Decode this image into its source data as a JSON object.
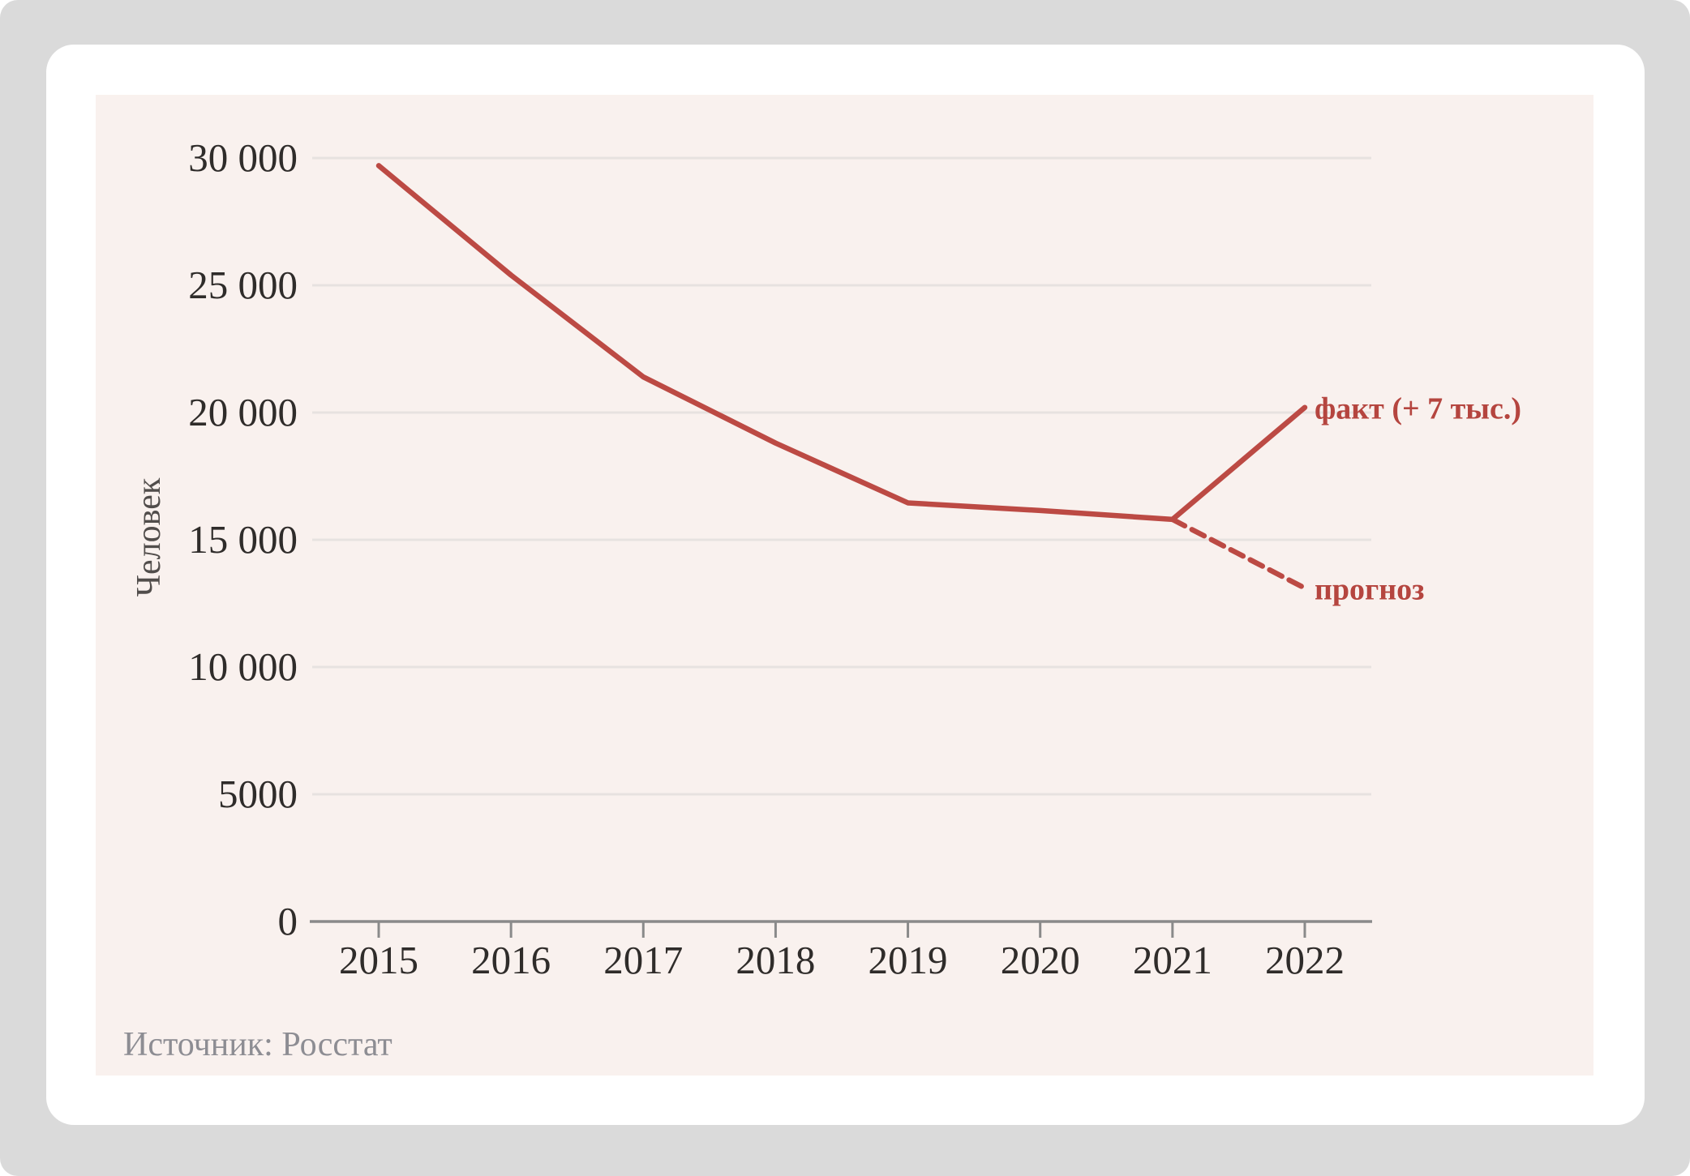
{
  "colors": {
    "frame_bg": "#dadada",
    "card_bg": "#ffffff",
    "panel_bg": "#f9f1ee",
    "grid_line": "#e7e2e0",
    "axis_line": "#8a8a8a",
    "tick_text": "#2f2c2a",
    "axis_title_text": "#514d4b",
    "source_text": "#8d8d93",
    "series_red": "#bc4a44",
    "series_label_red": "#b5453f"
  },
  "chart_data": {
    "type": "line",
    "title": "",
    "xlabel": "",
    "ylabel": "Человек",
    "x": [
      2015,
      2016,
      2017,
      2018,
      2019,
      2020,
      2021,
      2022
    ],
    "x_tick_labels": [
      "2015",
      "2016",
      "2017",
      "2018",
      "2019",
      "2020",
      "2021",
      "2022"
    ],
    "y_ticks": [
      0,
      5000,
      10000,
      15000,
      20000,
      25000,
      30000
    ],
    "y_tick_labels": [
      "0",
      "5000",
      "10 000",
      "15 000",
      "20 000",
      "25 000",
      "30 000"
    ],
    "ylim": [
      0,
      30000
    ],
    "grid": "horizontal-only",
    "legend_position": "inline-end-of-line-labels",
    "series": [
      {
        "name": "fact",
        "label": "факт (+ 7 тыс.)",
        "style": "solid",
        "x": [
          2015,
          2016,
          2017,
          2018,
          2019,
          2020,
          2021,
          2022
        ],
        "values": [
          29700,
          25400,
          21400,
          18800,
          16450,
          16150,
          15800,
          20200
        ]
      },
      {
        "name": "forecast",
        "label": "прогноз",
        "style": "dashed",
        "x": [
          2021,
          2022
        ],
        "values": [
          15800,
          13100
        ]
      }
    ],
    "source": "Источник: Росстат"
  }
}
